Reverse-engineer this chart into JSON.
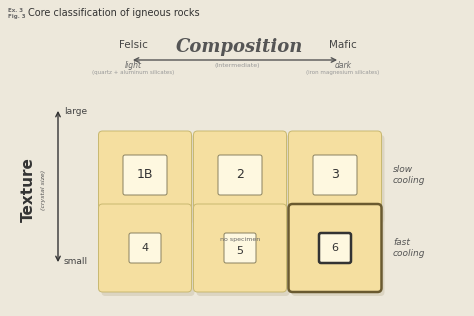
{
  "title": "Core classification of igneous rocks",
  "subtitle_ex": "Ex. 3",
  "subtitle_fig": "Fig. 3",
  "bg_color": "#ede8db",
  "box_fill": "#f5dfa0",
  "box_edge": "#c8b870",
  "inner_box_fill": "#fef8e0",
  "inner_box_edge": "#888060",
  "shadow_color": "#d5cdb8",
  "composition_label": "Composition",
  "felsic_label": "Felsic",
  "felsic_sub1": "light",
  "felsic_sub2": "(quartz + aluminum silicates)",
  "mafic_label": "Mafic",
  "mafic_sub1": "dark",
  "mafic_sub2": "(iron magnesium silicates)",
  "intermediate_label": "(Intermediate)",
  "texture_label": "Texture",
  "texture_sub": "(crystal size)",
  "large_label": "large",
  "small_label": "small",
  "slow_cooling_label": "slow\ncooling",
  "fast_cooling_label": "fast\ncooling",
  "cells": [
    {
      "row": 0,
      "col": 0,
      "number": "1B",
      "no_specimen": false,
      "thick_border": false
    },
    {
      "row": 0,
      "col": 1,
      "number": "2",
      "no_specimen": false,
      "thick_border": false
    },
    {
      "row": 0,
      "col": 2,
      "number": "3",
      "no_specimen": false,
      "thick_border": false
    },
    {
      "row": 1,
      "col": 0,
      "number": "4",
      "no_specimen": false,
      "thick_border": false
    },
    {
      "row": 1,
      "col": 1,
      "number": "5",
      "no_specimen": true,
      "thick_border": false
    },
    {
      "row": 1,
      "col": 2,
      "number": "6",
      "no_specimen": false,
      "thick_border": true
    }
  ]
}
